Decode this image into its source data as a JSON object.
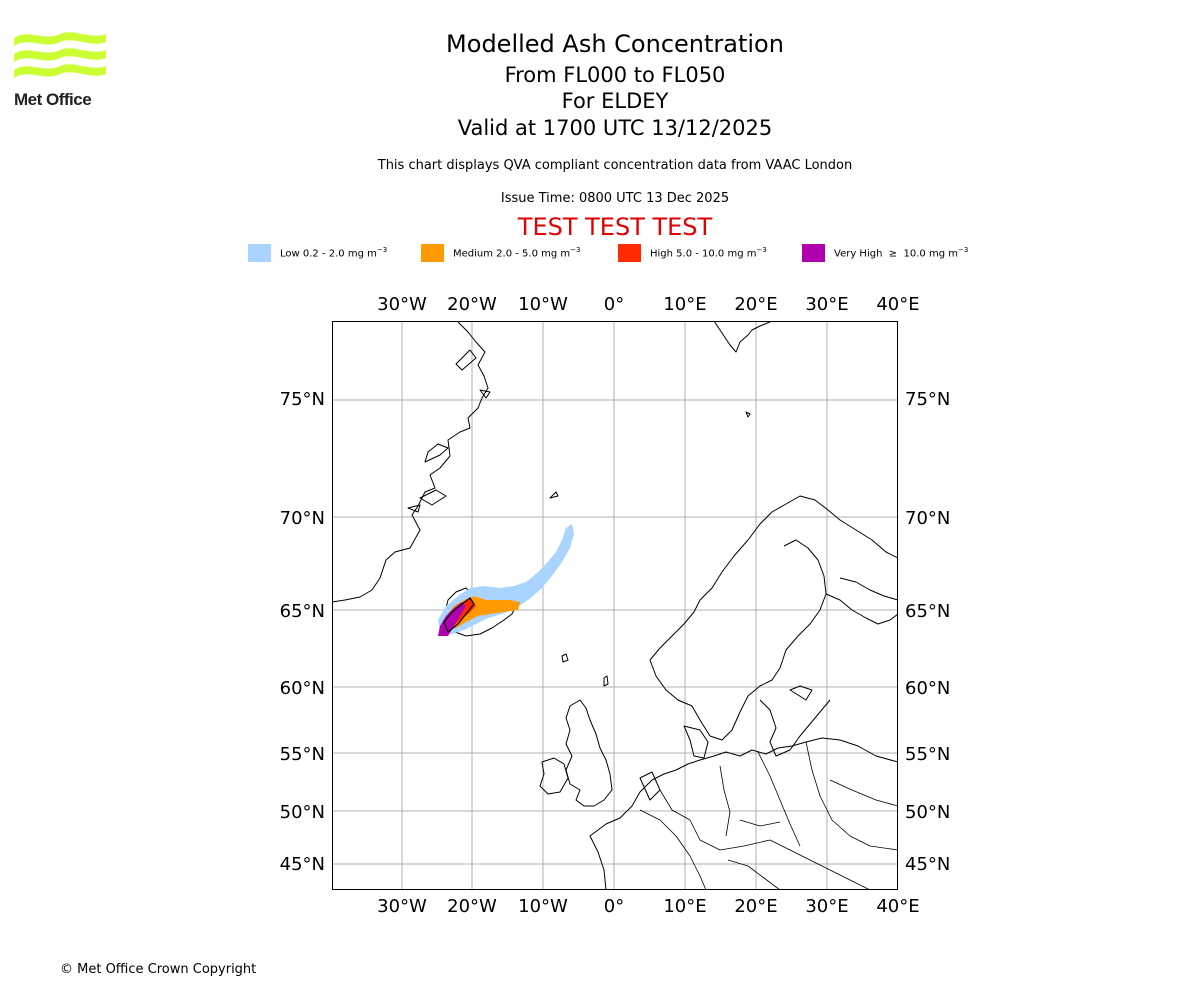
{
  "logo": {
    "text": "Met Office",
    "color": "#ccff33"
  },
  "title": {
    "line1": "Modelled Ash Concentration",
    "line2": "From FL000 to FL050",
    "line3": "For ELDEY",
    "line4": "Valid at 1700 UTC 13/12/2025"
  },
  "subtitle": "This chart displays QVA compliant concentration data from VAAC London",
  "issue_time": "Issue Time: 0800 UTC 13 Dec 2025",
  "test_banner": "TEST TEST TEST",
  "legend": [
    {
      "label": "Low 0.2 - 2.0 mg m",
      "color": "#a8d4ff"
    },
    {
      "label": "Medium 2.0 - 5.0 mg m",
      "color": "#ff9a00"
    },
    {
      "label": "High 5.0 - 10.0 mg m",
      "color": "#ff2a00"
    },
    {
      "label": "Very High  ≥  10.0 mg m",
      "color": "#b000b0"
    }
  ],
  "legend_unit_exponent": "−3",
  "axes": {
    "lon_labels": [
      "30°W",
      "20°W",
      "10°W",
      "0°",
      "10°E",
      "20°E",
      "30°E",
      "40°E"
    ],
    "lat_labels": [
      "75°N",
      "70°N",
      "65°N",
      "60°N",
      "55°N",
      "50°N",
      "45°N"
    ]
  },
  "copyright": "© Met Office Crown Copyright"
}
